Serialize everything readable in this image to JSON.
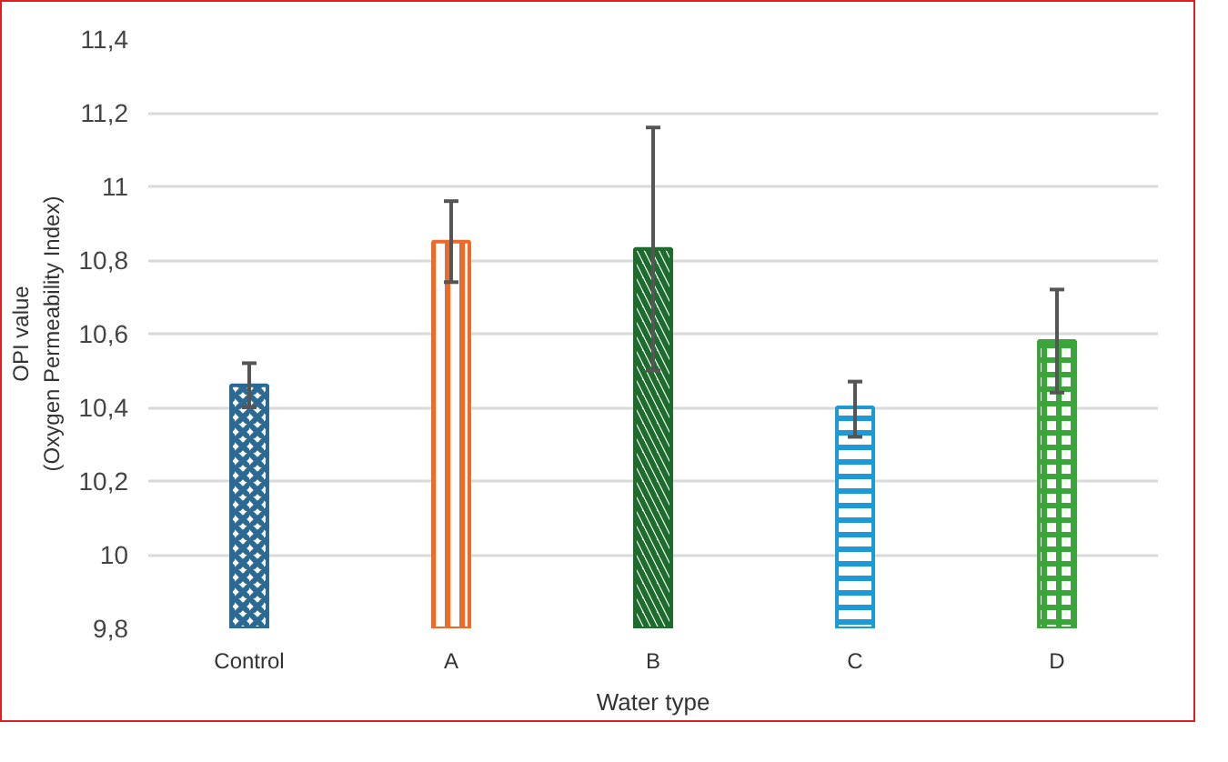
{
  "chart_data": {
    "type": "bar",
    "xlabel": "Water type",
    "ylabel": "OPI value\n(Oxygen Permeability Index)",
    "categories": [
      "Control",
      "A",
      "B",
      "C",
      "D"
    ],
    "values": [
      10.46,
      10.85,
      10.83,
      10.4,
      10.58
    ],
    "errors": [
      [
        10.4,
        10.52
      ],
      [
        10.74,
        10.96
      ],
      [
        10.5,
        11.16
      ],
      [
        10.32,
        10.47
      ],
      [
        10.44,
        10.72
      ]
    ],
    "colors": [
      "#2a6a94",
      "#ec6a2a",
      "#1e6b2e",
      "#1d9ad6",
      "#3aa63a"
    ],
    "ylim": [
      9.8,
      11.4
    ],
    "yticks": [
      {
        "value": 9.8,
        "label": "9,8"
      },
      10,
      {
        "value": 10.2,
        "label": "10,2"
      },
      {
        "value": 10.4,
        "label": "10,4"
      },
      {
        "value": 10.6,
        "label": "10,6"
      },
      {
        "value": 10.8,
        "label": "10,8"
      },
      11,
      {
        "value": 11.2,
        "label": "11,2"
      },
      {
        "value": 11.4,
        "label": "11,4"
      }
    ],
    "grid": "y"
  }
}
